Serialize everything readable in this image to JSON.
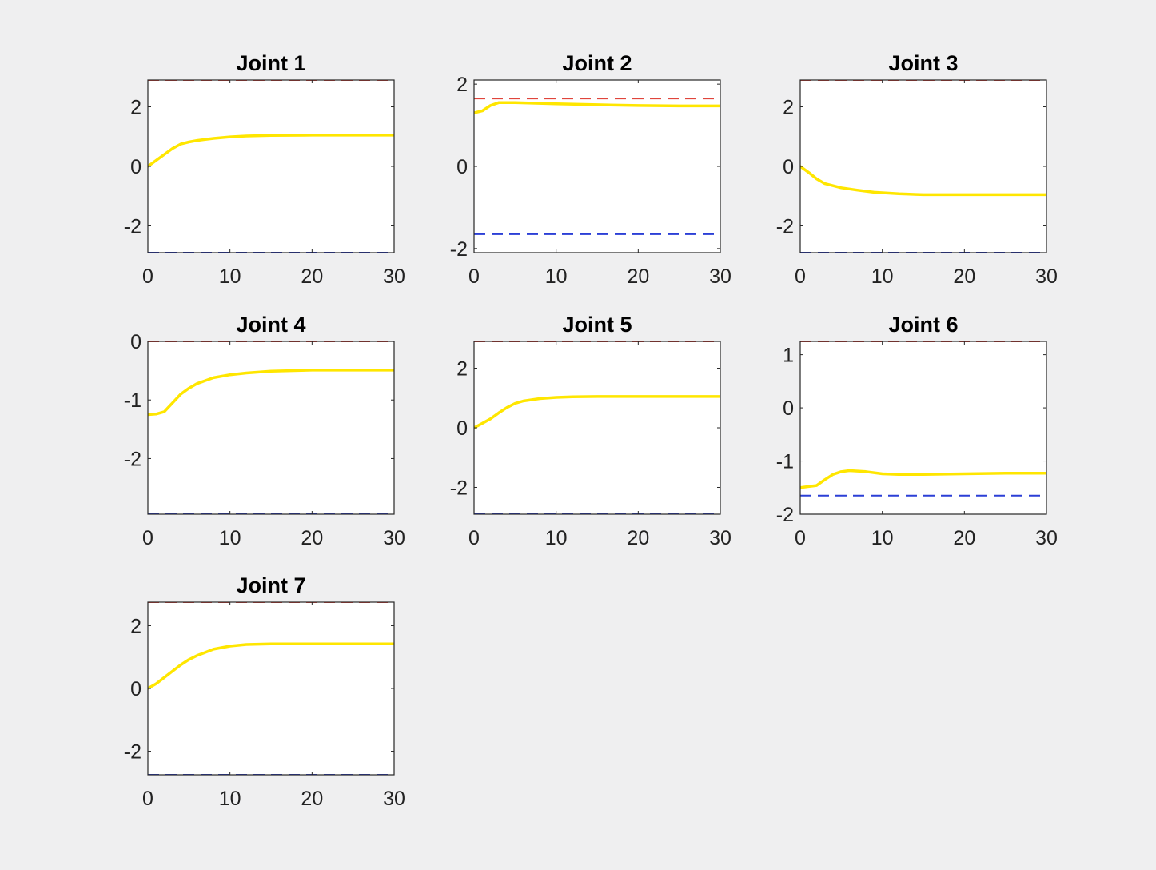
{
  "colors": {
    "background": "#efeff0",
    "plot_background": "#ffffff",
    "trajectory": "#ffe600",
    "upper_limit": "#e0453c",
    "lower_limit": "#2b3fd6"
  },
  "chart_data": [
    {
      "type": "line",
      "title": "Joint 1",
      "xlim": [
        0,
        30
      ],
      "ylim": [
        -2.9,
        2.9
      ],
      "xticks": [
        0,
        10,
        20,
        30
      ],
      "yticks": [
        -2,
        0,
        2
      ],
      "upper_limit": 2.9,
      "lower_limit": -2.9,
      "x": [
        0,
        1,
        2,
        3,
        4,
        5,
        6,
        8,
        10,
        12,
        15,
        20,
        25,
        30
      ],
      "y": [
        0.0,
        0.2,
        0.4,
        0.6,
        0.75,
        0.82,
        0.87,
        0.94,
        0.99,
        1.02,
        1.04,
        1.05,
        1.05,
        1.05
      ]
    },
    {
      "type": "line",
      "title": "Joint 2",
      "xlim": [
        0,
        30
      ],
      "ylim": [
        -2.1,
        2.1
      ],
      "xticks": [
        0,
        10,
        20,
        30
      ],
      "yticks": [
        -2,
        0,
        2
      ],
      "upper_limit": 1.65,
      "lower_limit": -1.65,
      "x": [
        0,
        1,
        2,
        3,
        5,
        10,
        15,
        20,
        25,
        30
      ],
      "y": [
        1.3,
        1.35,
        1.48,
        1.55,
        1.55,
        1.52,
        1.5,
        1.48,
        1.47,
        1.47
      ]
    },
    {
      "type": "line",
      "title": "Joint 3",
      "xlim": [
        0,
        30
      ],
      "ylim": [
        -2.9,
        2.9
      ],
      "xticks": [
        0,
        10,
        20,
        30
      ],
      "yticks": [
        -2,
        0,
        2
      ],
      "upper_limit": 2.9,
      "lower_limit": -2.9,
      "x": [
        0,
        1,
        2,
        3,
        4,
        5,
        7,
        9,
        12,
        15,
        20,
        25,
        30
      ],
      "y": [
        0.0,
        -0.2,
        -0.42,
        -0.58,
        -0.65,
        -0.72,
        -0.8,
        -0.87,
        -0.92,
        -0.95,
        -0.95,
        -0.95,
        -0.95
      ]
    },
    {
      "type": "line",
      "title": "Joint 4",
      "xlim": [
        0,
        30
      ],
      "ylim": [
        -2.95,
        0
      ],
      "xticks": [
        0,
        10,
        20,
        30
      ],
      "yticks": [
        -2,
        -1,
        0
      ],
      "upper_limit": 0.0,
      "lower_limit": -2.95,
      "x": [
        0,
        1,
        2,
        3,
        4,
        5,
        6,
        8,
        10,
        12,
        15,
        20,
        25,
        30
      ],
      "y": [
        -1.25,
        -1.24,
        -1.2,
        -1.05,
        -0.9,
        -0.8,
        -0.72,
        -0.62,
        -0.57,
        -0.54,
        -0.51,
        -0.49,
        -0.49,
        -0.49
      ]
    },
    {
      "type": "line",
      "title": "Joint 5",
      "xlim": [
        0,
        30
      ],
      "ylim": [
        -2.9,
        2.9
      ],
      "xticks": [
        0,
        10,
        20,
        30
      ],
      "yticks": [
        -2,
        0,
        2
      ],
      "upper_limit": 2.9,
      "lower_limit": -2.9,
      "x": [
        0,
        1,
        2,
        3,
        4,
        5,
        6,
        8,
        10,
        12,
        15,
        20,
        25,
        30
      ],
      "y": [
        0.0,
        0.15,
        0.3,
        0.5,
        0.68,
        0.82,
        0.9,
        0.98,
        1.02,
        1.04,
        1.05,
        1.05,
        1.05,
        1.05
      ]
    },
    {
      "type": "line",
      "title": "Joint 6",
      "xlim": [
        0,
        30
      ],
      "ylim": [
        -2,
        1.25
      ],
      "xticks": [
        0,
        10,
        20,
        30
      ],
      "yticks": [
        -2,
        -1,
        0,
        1
      ],
      "upper_limit": 1.25,
      "lower_limit": -1.65,
      "x": [
        0,
        1,
        2,
        3,
        4,
        5,
        6,
        8,
        10,
        12,
        15,
        20,
        25,
        30
      ],
      "y": [
        -1.5,
        -1.48,
        -1.46,
        -1.35,
        -1.25,
        -1.2,
        -1.18,
        -1.2,
        -1.24,
        -1.25,
        -1.25,
        -1.24,
        -1.23,
        -1.23
      ]
    },
    {
      "type": "line",
      "title": "Joint 7",
      "xlim": [
        0,
        30
      ],
      "ylim": [
        -2.75,
        2.75
      ],
      "xticks": [
        0,
        10,
        20,
        30
      ],
      "yticks": [
        -2,
        0,
        2
      ],
      "upper_limit": 2.75,
      "lower_limit": -2.75,
      "x": [
        0,
        1,
        2,
        3,
        4,
        5,
        6,
        8,
        10,
        12,
        15,
        20,
        25,
        30
      ],
      "y": [
        0.0,
        0.15,
        0.35,
        0.55,
        0.75,
        0.92,
        1.05,
        1.25,
        1.35,
        1.4,
        1.42,
        1.42,
        1.42,
        1.42
      ]
    }
  ]
}
